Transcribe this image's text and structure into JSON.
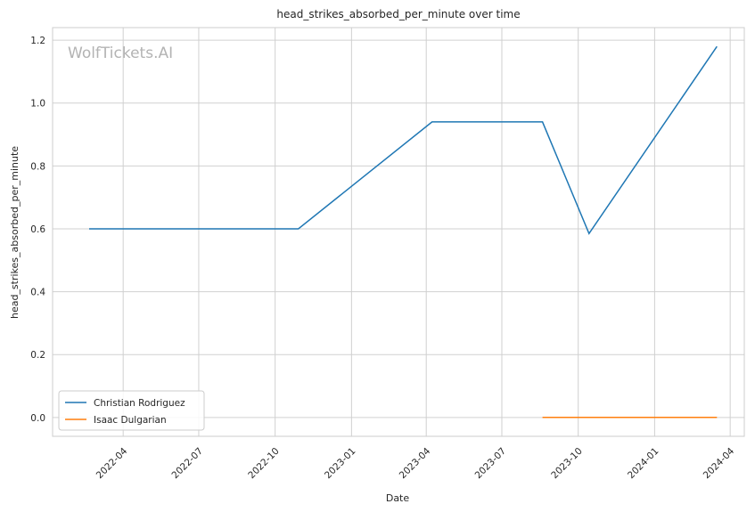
{
  "chart_data": {
    "type": "line",
    "title": "head_strikes_absorbed_per_minute over time",
    "xlabel": "Date",
    "ylabel": "head_strikes_absorbed_per_minute",
    "watermark": "WolfTickets.AI",
    "xlim": [
      "2022-01-06",
      "2024-04-18"
    ],
    "ylim": [
      -0.06,
      1.24
    ],
    "y_ticks": [
      0.0,
      0.2,
      0.4,
      0.6,
      0.8,
      1.0,
      1.2
    ],
    "y_tick_labels": [
      "0.0",
      "0.2",
      "0.4",
      "0.6",
      "0.8",
      "1.0",
      "1.2"
    ],
    "x_ticks": [
      "2022-04-01",
      "2022-07-01",
      "2022-10-01",
      "2023-01-01",
      "2023-04-01",
      "2023-07-01",
      "2023-10-01",
      "2024-01-01",
      "2024-04-01"
    ],
    "x_tick_labels": [
      "2022-04",
      "2022-07",
      "2022-10",
      "2023-01",
      "2023-04",
      "2023-07",
      "2023-10",
      "2024-01",
      "2024-04"
    ],
    "grid": true,
    "legend_position": "lower-left",
    "series": [
      {
        "name": "Christian Rodriguez",
        "color": "#1f77b4",
        "x": [
          "2022-02-19",
          "2022-10-29",
          "2023-04-08",
          "2023-08-19",
          "2023-10-14",
          "2024-03-16"
        ],
        "y": [
          0.6,
          0.6,
          0.94,
          0.94,
          0.585,
          1.18
        ]
      },
      {
        "name": "Isaac Dulgarian",
        "color": "#ff7f0e",
        "x": [
          "2023-08-19",
          "2024-03-16"
        ],
        "y": [
          0.0,
          0.0
        ]
      }
    ]
  }
}
